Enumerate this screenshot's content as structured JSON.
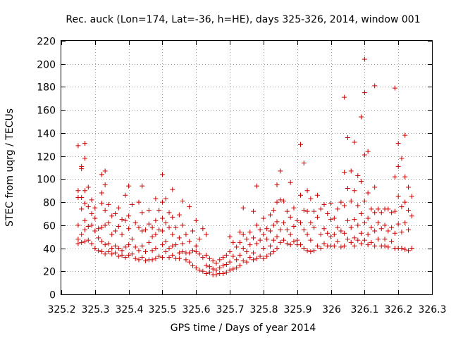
{
  "chart_data": {
    "type": "scatter",
    "title": "Rec. auck (Lon=174, Lat=-36, h=HE), days 325-326, 2014, window 001",
    "xlabel": "GPS time / Days of year 2014",
    "ylabel": "STEC from uqrg / TECUs",
    "xlim": [
      325.2,
      326.3
    ],
    "ylim": [
      0,
      220
    ],
    "xticks": [
      "325.2",
      "325.3",
      "325.4",
      "325.5",
      "325.6",
      "325.7",
      "325.8",
      "325.9",
      "326",
      "326.1",
      "326.2",
      "326.3"
    ],
    "xtick_values": [
      325.2,
      325.3,
      325.4,
      325.5,
      325.6,
      325.7,
      325.8,
      325.9,
      326.0,
      326.1,
      326.2,
      326.3
    ],
    "yticks": [
      "0",
      "20",
      "40",
      "60",
      "80",
      "100",
      "120",
      "140",
      "160",
      "180",
      "200",
      "220"
    ],
    "ytick_values": [
      0,
      20,
      40,
      60,
      80,
      100,
      120,
      140,
      160,
      180,
      200,
      220
    ],
    "grid": true,
    "marker": "+",
    "color": "#cc0000",
    "points": [
      [
        325.25,
        129
      ],
      [
        325.25,
        90
      ],
      [
        325.25,
        84
      ],
      [
        325.25,
        60
      ],
      [
        325.25,
        48
      ],
      [
        325.25,
        44
      ],
      [
        325.26,
        111
      ],
      [
        325.26,
        109
      ],
      [
        325.26,
        84
      ],
      [
        325.26,
        74
      ],
      [
        325.26,
        52
      ],
      [
        325.26,
        45
      ],
      [
        325.27,
        131
      ],
      [
        325.27,
        118
      ],
      [
        325.27,
        90
      ],
      [
        325.27,
        79
      ],
      [
        325.27,
        64
      ],
      [
        325.27,
        56
      ],
      [
        325.27,
        46
      ],
      [
        325.28,
        93
      ],
      [
        325.28,
        76
      ],
      [
        325.28,
        59
      ],
      [
        325.28,
        47
      ],
      [
        325.29,
        82
      ],
      [
        325.29,
        70
      ],
      [
        325.29,
        60
      ],
      [
        325.29,
        44
      ],
      [
        325.3,
        75
      ],
      [
        325.3,
        66
      ],
      [
        325.3,
        55
      ],
      [
        325.3,
        40
      ],
      [
        325.31,
        57
      ],
      [
        325.31,
        49
      ],
      [
        325.31,
        38
      ],
      [
        325.32,
        104
      ],
      [
        325.32,
        88
      ],
      [
        325.32,
        79
      ],
      [
        325.32,
        58
      ],
      [
        325.32,
        46
      ],
      [
        325.32,
        37
      ],
      [
        325.33,
        107
      ],
      [
        325.33,
        95
      ],
      [
        325.33,
        73
      ],
      [
        325.33,
        60
      ],
      [
        325.33,
        43
      ],
      [
        325.33,
        35
      ],
      [
        325.34,
        78
      ],
      [
        325.34,
        62
      ],
      [
        325.34,
        44
      ],
      [
        325.34,
        37
      ],
      [
        325.35,
        68
      ],
      [
        325.35,
        52
      ],
      [
        325.35,
        40
      ],
      [
        325.35,
        35
      ],
      [
        325.36,
        70
      ],
      [
        325.36,
        55
      ],
      [
        325.36,
        42
      ],
      [
        325.36,
        36
      ],
      [
        325.37,
        75
      ],
      [
        325.37,
        59
      ],
      [
        325.37,
        40
      ],
      [
        325.37,
        33
      ],
      [
        325.38,
        65
      ],
      [
        325.38,
        52
      ],
      [
        325.38,
        38
      ],
      [
        325.38,
        34
      ],
      [
        325.39,
        86
      ],
      [
        325.39,
        64
      ],
      [
        325.39,
        41
      ],
      [
        325.39,
        32
      ],
      [
        325.4,
        94
      ],
      [
        325.4,
        68
      ],
      [
        325.4,
        57
      ],
      [
        325.4,
        43
      ],
      [
        325.4,
        34
      ],
      [
        325.41,
        78
      ],
      [
        325.41,
        48
      ],
      [
        325.41,
        35
      ],
      [
        325.42,
        62
      ],
      [
        325.42,
        41
      ],
      [
        325.42,
        31
      ],
      [
        325.43,
        80
      ],
      [
        325.43,
        58
      ],
      [
        325.43,
        38
      ],
      [
        325.43,
        30
      ],
      [
        325.44,
        94
      ],
      [
        325.44,
        71
      ],
      [
        325.44,
        55
      ],
      [
        325.44,
        42
      ],
      [
        325.44,
        32
      ],
      [
        325.45,
        56
      ],
      [
        325.45,
        37
      ],
      [
        325.45,
        29
      ],
      [
        325.46,
        73
      ],
      [
        325.46,
        61
      ],
      [
        325.46,
        45
      ],
      [
        325.46,
        30
      ],
      [
        325.47,
        58
      ],
      [
        325.47,
        50
      ],
      [
        325.47,
        38
      ],
      [
        325.47,
        30
      ],
      [
        325.48,
        83
      ],
      [
        325.48,
        64
      ],
      [
        325.48,
        52
      ],
      [
        325.48,
        40
      ],
      [
        325.48,
        31
      ],
      [
        325.49,
        73
      ],
      [
        325.49,
        56
      ],
      [
        325.49,
        33
      ],
      [
        325.5,
        104
      ],
      [
        325.5,
        80
      ],
      [
        325.5,
        66
      ],
      [
        325.5,
        55
      ],
      [
        325.5,
        43
      ],
      [
        325.5,
        32
      ],
      [
        325.51,
        83
      ],
      [
        325.51,
        62
      ],
      [
        325.51,
        46
      ],
      [
        325.51,
        37
      ],
      [
        325.52,
        71
      ],
      [
        325.52,
        58
      ],
      [
        325.52,
        40
      ],
      [
        325.52,
        32
      ],
      [
        325.53,
        91
      ],
      [
        325.53,
        67
      ],
      [
        325.53,
        52
      ],
      [
        325.53,
        42
      ],
      [
        325.53,
        34
      ],
      [
        325.54,
        58
      ],
      [
        325.54,
        43
      ],
      [
        325.54,
        31
      ],
      [
        325.55,
        69
      ],
      [
        325.55,
        49
      ],
      [
        325.55,
        36
      ],
      [
        325.55,
        31
      ],
      [
        325.56,
        81
      ],
      [
        325.56,
        60
      ],
      [
        325.56,
        44
      ],
      [
        325.56,
        37
      ],
      [
        325.57,
        52
      ],
      [
        325.57,
        36
      ],
      [
        325.57,
        30
      ],
      [
        325.58,
        76
      ],
      [
        325.58,
        46
      ],
      [
        325.58,
        36
      ],
      [
        325.58,
        28
      ],
      [
        325.59,
        55
      ],
      [
        325.59,
        38
      ],
      [
        325.59,
        25
      ],
      [
        325.6,
        64
      ],
      [
        325.6,
        42
      ],
      [
        325.6,
        37
      ],
      [
        325.6,
        23
      ],
      [
        325.61,
        48
      ],
      [
        325.61,
        35
      ],
      [
        325.61,
        21
      ],
      [
        325.62,
        57
      ],
      [
        325.62,
        32
      ],
      [
        325.62,
        20
      ],
      [
        325.63,
        52
      ],
      [
        325.63,
        34
      ],
      [
        325.63,
        25
      ],
      [
        325.63,
        18
      ],
      [
        325.64,
        31
      ],
      [
        325.64,
        24
      ],
      [
        325.64,
        19
      ],
      [
        325.65,
        29
      ],
      [
        325.65,
        22
      ],
      [
        325.65,
        17
      ],
      [
        325.66,
        27
      ],
      [
        325.66,
        21
      ],
      [
        325.66,
        17
      ],
      [
        325.67,
        30
      ],
      [
        325.67,
        23
      ],
      [
        325.67,
        18
      ],
      [
        325.68,
        32
      ],
      [
        325.68,
        25
      ],
      [
        325.68,
        18
      ],
      [
        325.69,
        34
      ],
      [
        325.69,
        26
      ],
      [
        325.69,
        19
      ],
      [
        325.7,
        50
      ],
      [
        325.7,
        37
      ],
      [
        325.7,
        28
      ],
      [
        325.7,
        21
      ],
      [
        325.71,
        45
      ],
      [
        325.71,
        33
      ],
      [
        325.71,
        22
      ],
      [
        325.72,
        41
      ],
      [
        325.72,
        30
      ],
      [
        325.72,
        23
      ],
      [
        325.73,
        54
      ],
      [
        325.73,
        45
      ],
      [
        325.73,
        34
      ],
      [
        325.73,
        25
      ],
      [
        325.74,
        75
      ],
      [
        325.74,
        52
      ],
      [
        325.74,
        40
      ],
      [
        325.74,
        29
      ],
      [
        325.75,
        48
      ],
      [
        325.75,
        37
      ],
      [
        325.75,
        28
      ],
      [
        325.76,
        54
      ],
      [
        325.76,
        43
      ],
      [
        325.76,
        32
      ],
      [
        325.77,
        72
      ],
      [
        325.77,
        49
      ],
      [
        325.77,
        36
      ],
      [
        325.77,
        30
      ],
      [
        325.78,
        94
      ],
      [
        325.78,
        60
      ],
      [
        325.78,
        44
      ],
      [
        325.78,
        31
      ],
      [
        325.79,
        56
      ],
      [
        325.79,
        47
      ],
      [
        325.79,
        33
      ],
      [
        325.8,
        66
      ],
      [
        325.8,
        52
      ],
      [
        325.8,
        40
      ],
      [
        325.8,
        31
      ],
      [
        325.81,
        57
      ],
      [
        325.81,
        48
      ],
      [
        325.81,
        33
      ],
      [
        325.82,
        69
      ],
      [
        325.82,
        55
      ],
      [
        325.82,
        42
      ],
      [
        325.82,
        35
      ],
      [
        325.83,
        73
      ],
      [
        325.83,
        60
      ],
      [
        325.83,
        47
      ],
      [
        325.83,
        37
      ],
      [
        325.84,
        95
      ],
      [
        325.84,
        80
      ],
      [
        325.84,
        63
      ],
      [
        325.84,
        50
      ],
      [
        325.84,
        40
      ],
      [
        325.85,
        107
      ],
      [
        325.85,
        82
      ],
      [
        325.85,
        56
      ],
      [
        325.85,
        45
      ],
      [
        325.86,
        81
      ],
      [
        325.86,
        62
      ],
      [
        325.86,
        47
      ],
      [
        325.87,
        72
      ],
      [
        325.87,
        56
      ],
      [
        325.87,
        44
      ],
      [
        325.88,
        97
      ],
      [
        325.88,
        67
      ],
      [
        325.88,
        52
      ],
      [
        325.88,
        43
      ],
      [
        325.89,
        75
      ],
      [
        325.89,
        59
      ],
      [
        325.89,
        46
      ],
      [
        325.9,
        64
      ],
      [
        325.9,
        47
      ],
      [
        325.9,
        43
      ],
      [
        325.91,
        130
      ],
      [
        325.91,
        86
      ],
      [
        325.91,
        62
      ],
      [
        325.91,
        43
      ],
      [
        325.92,
        114
      ],
      [
        325.92,
        73
      ],
      [
        325.92,
        56
      ],
      [
        325.92,
        40
      ],
      [
        325.93,
        90
      ],
      [
        325.93,
        72
      ],
      [
        325.93,
        52
      ],
      [
        325.93,
        38
      ],
      [
        325.94,
        83
      ],
      [
        325.94,
        62
      ],
      [
        325.94,
        47
      ],
      [
        325.94,
        37
      ],
      [
        325.95,
        72
      ],
      [
        325.95,
        58
      ],
      [
        325.95,
        38
      ],
      [
        325.96,
        86
      ],
      [
        325.96,
        67
      ],
      [
        325.96,
        42
      ],
      [
        325.97,
        74
      ],
      [
        325.97,
        52
      ],
      [
        325.97,
        40
      ],
      [
        325.98,
        78
      ],
      [
        325.98,
        57
      ],
      [
        325.98,
        44
      ],
      [
        325.99,
        70
      ],
      [
        325.99,
        53
      ],
      [
        325.99,
        42
      ],
      [
        326.0,
        79
      ],
      [
        326.0,
        65
      ],
      [
        326.0,
        50
      ],
      [
        326.0,
        42
      ],
      [
        326.01,
        66
      ],
      [
        326.01,
        52
      ],
      [
        326.01,
        42
      ],
      [
        326.02,
        74
      ],
      [
        326.02,
        58
      ],
      [
        326.02,
        46
      ],
      [
        326.03,
        80
      ],
      [
        326.03,
        55
      ],
      [
        326.03,
        41
      ],
      [
        326.04,
        171
      ],
      [
        326.04,
        106
      ],
      [
        326.04,
        77
      ],
      [
        326.04,
        53
      ],
      [
        326.04,
        42
      ],
      [
        326.05,
        136
      ],
      [
        326.05,
        92
      ],
      [
        326.05,
        64
      ],
      [
        326.05,
        48
      ],
      [
        326.06,
        107
      ],
      [
        326.06,
        81
      ],
      [
        326.06,
        58
      ],
      [
        326.06,
        45
      ],
      [
        326.07,
        132
      ],
      [
        326.07,
        90
      ],
      [
        326.07,
        65
      ],
      [
        326.07,
        49
      ],
      [
        326.07,
        42
      ],
      [
        326.08,
        103
      ],
      [
        326.08,
        77
      ],
      [
        326.08,
        60
      ],
      [
        326.08,
        47
      ],
      [
        326.09,
        154
      ],
      [
        326.09,
        98
      ],
      [
        326.09,
        70
      ],
      [
        326.09,
        53
      ],
      [
        326.09,
        44
      ],
      [
        326.1,
        204
      ],
      [
        326.1,
        175
      ],
      [
        326.1,
        121
      ],
      [
        326.1,
        81
      ],
      [
        326.1,
        62
      ],
      [
        326.1,
        47
      ],
      [
        326.11,
        124
      ],
      [
        326.11,
        88
      ],
      [
        326.11,
        66
      ],
      [
        326.11,
        52
      ],
      [
        326.11,
        43
      ],
      [
        326.12,
        74
      ],
      [
        326.12,
        58
      ],
      [
        326.12,
        45
      ],
      [
        326.13,
        181
      ],
      [
        326.13,
        93
      ],
      [
        326.13,
        71
      ],
      [
        326.13,
        55
      ],
      [
        326.13,
        42
      ],
      [
        326.14,
        74
      ],
      [
        326.14,
        62
      ],
      [
        326.14,
        48
      ],
      [
        326.15,
        71
      ],
      [
        326.15,
        57
      ],
      [
        326.15,
        42
      ],
      [
        326.16,
        74
      ],
      [
        326.16,
        60
      ],
      [
        326.16,
        48
      ],
      [
        326.16,
        42
      ],
      [
        326.17,
        74
      ],
      [
        326.17,
        55
      ],
      [
        326.17,
        41
      ],
      [
        326.18,
        71
      ],
      [
        326.18,
        58
      ],
      [
        326.18,
        46
      ],
      [
        326.19,
        179
      ],
      [
        326.19,
        102
      ],
      [
        326.19,
        72
      ],
      [
        326.19,
        53
      ],
      [
        326.19,
        40
      ],
      [
        326.2,
        131
      ],
      [
        326.2,
        111
      ],
      [
        326.2,
        85
      ],
      [
        326.2,
        61
      ],
      [
        326.2,
        40
      ],
      [
        326.21,
        118
      ],
      [
        326.21,
        76
      ],
      [
        326.21,
        54
      ],
      [
        326.21,
        40
      ],
      [
        326.22,
        138
      ],
      [
        326.22,
        102
      ],
      [
        326.22,
        80
      ],
      [
        326.22,
        62
      ],
      [
        326.22,
        39
      ],
      [
        326.23,
        93
      ],
      [
        326.23,
        73
      ],
      [
        326.23,
        56
      ],
      [
        326.23,
        38
      ],
      [
        326.24,
        85
      ],
      [
        326.24,
        68
      ],
      [
        326.24,
        40
      ]
    ]
  }
}
